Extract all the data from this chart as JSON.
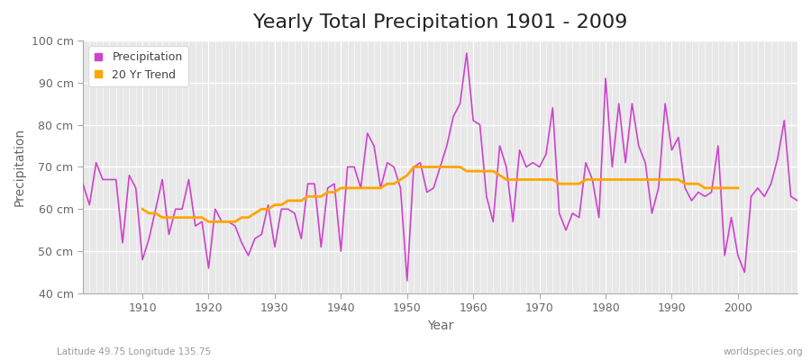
{
  "title": "Yearly Total Precipitation 1901 - 2009",
  "xlabel": "Year",
  "ylabel": "Precipitation",
  "xlim": [
    1901,
    2009
  ],
  "ylim": [
    40,
    100
  ],
  "yticks": [
    40,
    50,
    60,
    70,
    80,
    90,
    100
  ],
  "ytick_labels": [
    "40 cm",
    "50 cm",
    "60 cm",
    "70 cm",
    "80 cm",
    "90 cm",
    "100 cm"
  ],
  "background_color": "#ffffff",
  "plot_bg_color": "#e8e8e8",
  "precip_color": "#cc44cc",
  "trend_color": "#FFA500",
  "precip_label": "Precipitation",
  "trend_label": "20 Yr Trend",
  "years": [
    1901,
    1902,
    1903,
    1904,
    1905,
    1906,
    1907,
    1908,
    1909,
    1910,
    1911,
    1912,
    1913,
    1914,
    1915,
    1916,
    1917,
    1918,
    1919,
    1920,
    1921,
    1922,
    1923,
    1924,
    1925,
    1926,
    1927,
    1928,
    1929,
    1930,
    1931,
    1932,
    1933,
    1934,
    1935,
    1936,
    1937,
    1938,
    1939,
    1940,
    1941,
    1942,
    1943,
    1944,
    1945,
    1946,
    1947,
    1948,
    1949,
    1950,
    1951,
    1952,
    1953,
    1954,
    1955,
    1956,
    1957,
    1958,
    1959,
    1960,
    1961,
    1962,
    1963,
    1964,
    1965,
    1966,
    1967,
    1968,
    1969,
    1970,
    1971,
    1972,
    1973,
    1974,
    1975,
    1976,
    1977,
    1978,
    1979,
    1980,
    1981,
    1982,
    1983,
    1984,
    1985,
    1986,
    1987,
    1988,
    1989,
    1990,
    1991,
    1992,
    1993,
    1994,
    1995,
    1996,
    1997,
    1998,
    1999,
    2000,
    2001,
    2002,
    2003,
    2004,
    2005,
    2006,
    2007,
    2008,
    2009
  ],
  "precip": [
    66,
    61,
    71,
    67,
    67,
    67,
    52,
    68,
    65,
    48,
    53,
    60,
    67,
    54,
    60,
    60,
    67,
    56,
    57,
    46,
    60,
    57,
    57,
    56,
    52,
    49,
    53,
    54,
    61,
    51,
    60,
    60,
    59,
    53,
    66,
    66,
    51,
    65,
    66,
    50,
    70,
    70,
    65,
    78,
    75,
    65,
    71,
    70,
    65,
    43,
    70,
    71,
    64,
    65,
    70,
    75,
    82,
    85,
    97,
    81,
    80,
    63,
    57,
    75,
    70,
    57,
    74,
    70,
    71,
    70,
    73,
    84,
    59,
    55,
    59,
    58,
    71,
    67,
    58,
    91,
    70,
    85,
    71,
    85,
    75,
    71,
    59,
    65,
    85,
    74,
    77,
    65,
    62,
    64,
    63,
    64,
    75,
    49,
    58,
    49,
    45,
    63,
    65,
    63,
    66,
    72,
    81,
    63,
    62
  ],
  "trend_years": [
    1910,
    1911,
    1912,
    1913,
    1914,
    1915,
    1916,
    1917,
    1918,
    1919,
    1920,
    1921,
    1922,
    1923,
    1924,
    1925,
    1926,
    1927,
    1928,
    1929,
    1930,
    1931,
    1932,
    1933,
    1934,
    1935,
    1936,
    1937,
    1938,
    1939,
    1940,
    1941,
    1942,
    1943,
    1944,
    1945,
    1946,
    1947,
    1948,
    1949,
    1950,
    1951,
    1952,
    1953,
    1954,
    1955,
    1956,
    1957,
    1958,
    1959,
    1960,
    1961,
    1962,
    1963,
    1964,
    1965,
    1966,
    1967,
    1968,
    1969,
    1970,
    1971,
    1972,
    1973,
    1974,
    1975,
    1976,
    1977,
    1978,
    1979,
    1980,
    1981,
    1982,
    1983,
    1984,
    1985,
    1986,
    1987,
    1988,
    1989,
    1990,
    1991,
    1992,
    1993,
    1994,
    1995,
    1996,
    1997,
    1998,
    1999,
    2000
  ],
  "trend": [
    60,
    59,
    59,
    58,
    58,
    58,
    58,
    58,
    58,
    58,
    57,
    57,
    57,
    57,
    57,
    58,
    58,
    59,
    60,
    60,
    61,
    61,
    62,
    62,
    62,
    63,
    63,
    63,
    64,
    64,
    65,
    65,
    65,
    65,
    65,
    65,
    65,
    66,
    66,
    67,
    68,
    70,
    70,
    70,
    70,
    70,
    70,
    70,
    70,
    69,
    69,
    69,
    69,
    69,
    68,
    67,
    67,
    67,
    67,
    67,
    67,
    67,
    67,
    66,
    66,
    66,
    66,
    67,
    67,
    67,
    67,
    67,
    67,
    67,
    67,
    67,
    67,
    67,
    67,
    67,
    67,
    67,
    66,
    66,
    66,
    65,
    65,
    65,
    65,
    65,
    65
  ],
  "footnote_left": "Latitude 49.75 Longitude 135.75",
  "footnote_right": "worldspecies.org",
  "title_fontsize": 16,
  "axis_label_fontsize": 10,
  "tick_fontsize": 9,
  "legend_fontsize": 9
}
